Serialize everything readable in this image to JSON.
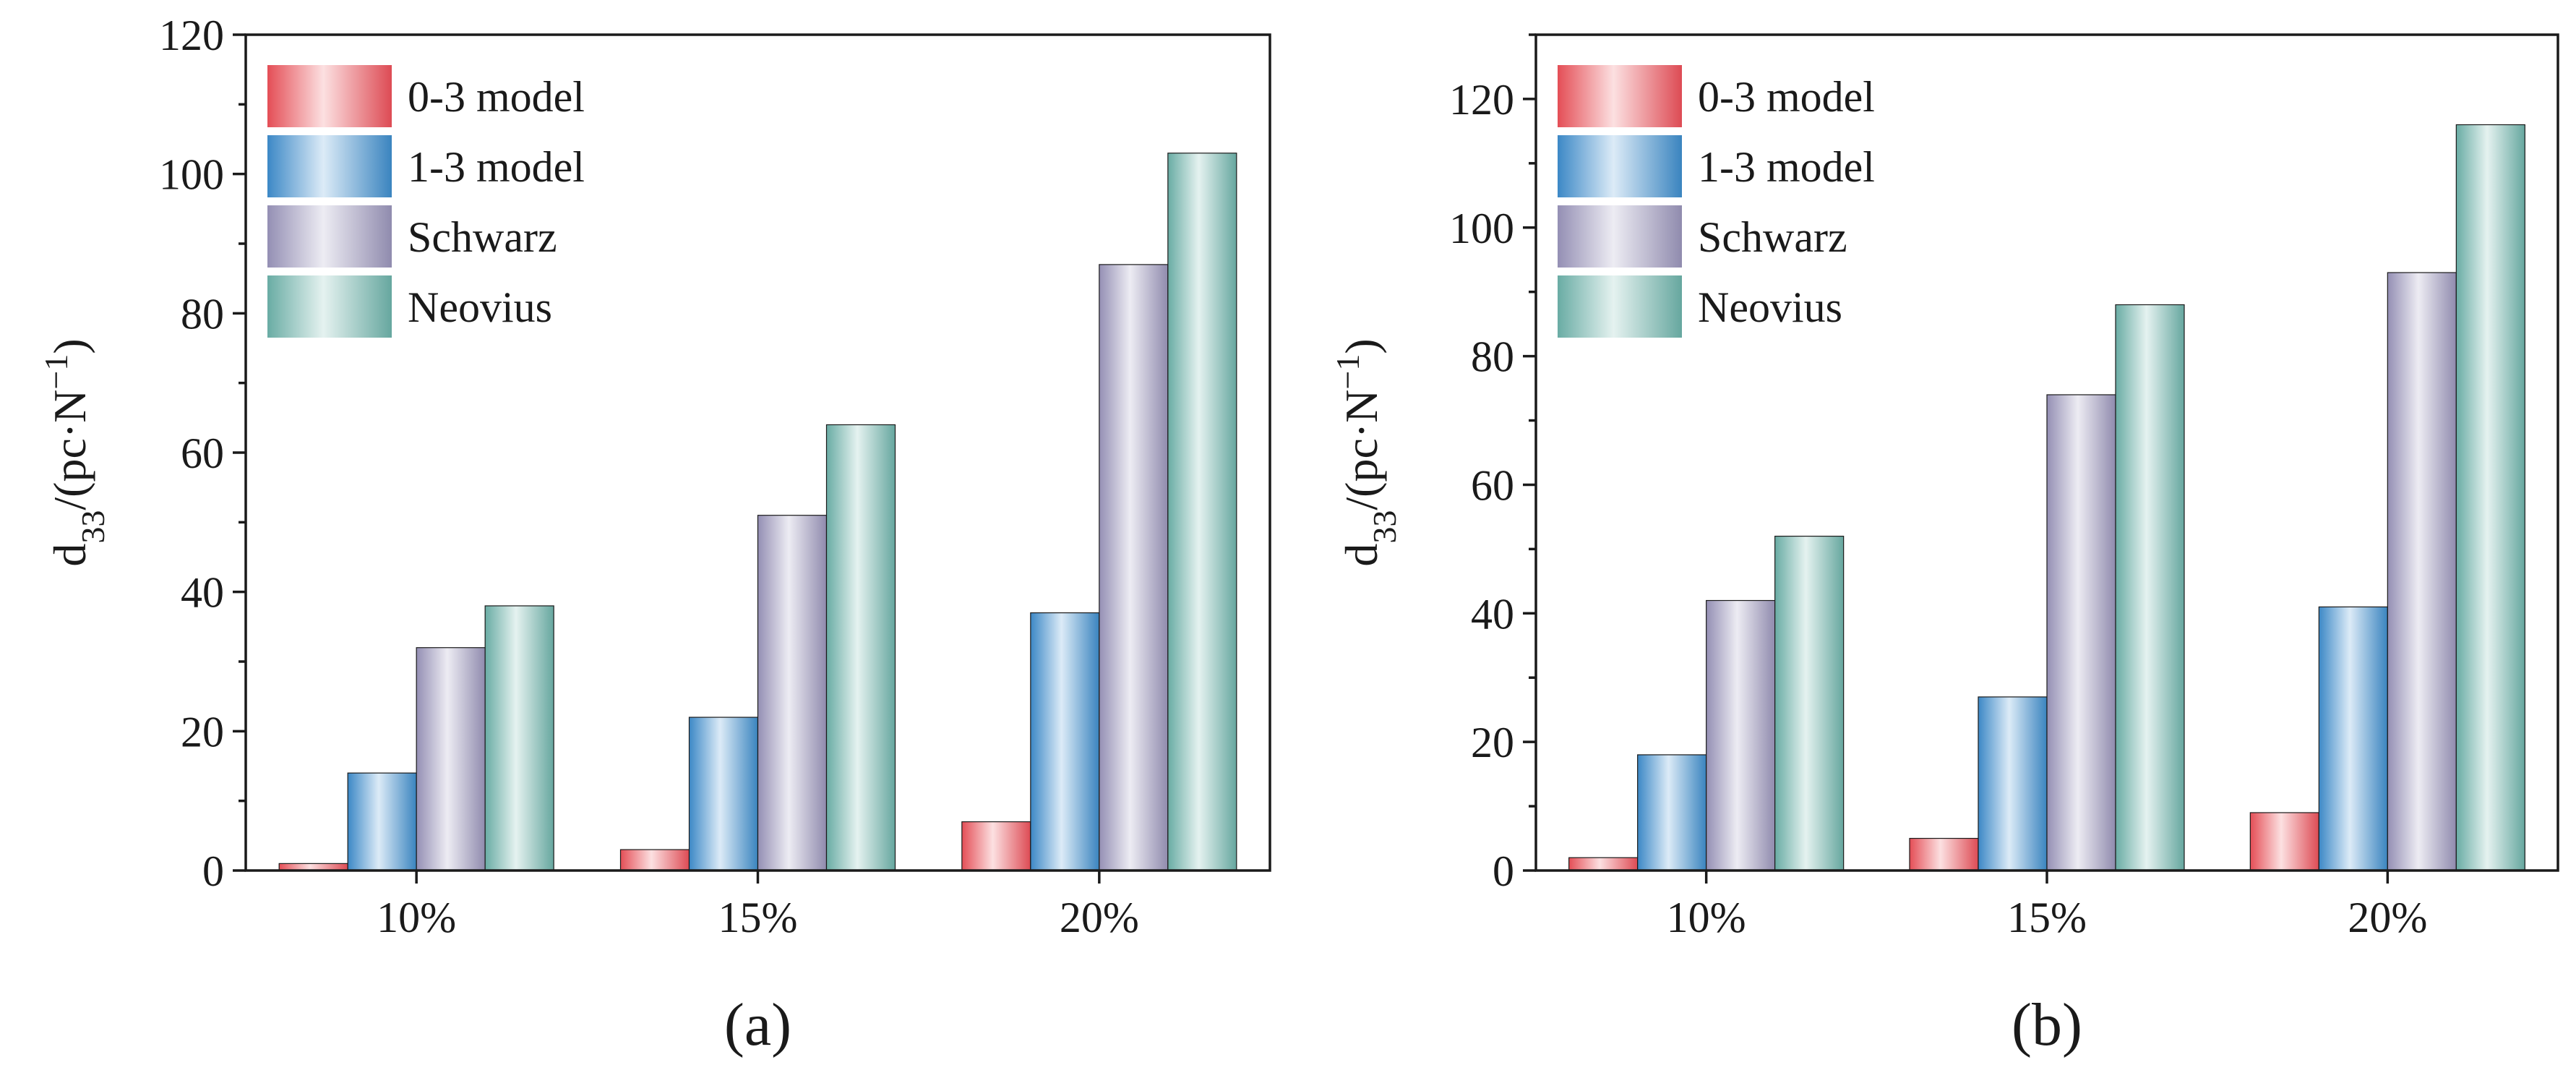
{
  "chart_data": [
    {
      "type": "bar",
      "panel_label": "(a)",
      "categories": [
        "10%",
        "15%",
        "20%"
      ],
      "series": [
        {
          "name": "0-3 model",
          "values": [
            1,
            3,
            7
          ],
          "color": "#f0525b"
        },
        {
          "name": "1-3 model",
          "values": [
            14,
            22,
            37
          ],
          "color": "#3f8fd0"
        },
        {
          "name": "Schwarz",
          "values": [
            32,
            51,
            87
          ],
          "color": "#9c97bd"
        },
        {
          "name": "Neovius",
          "values": [
            38,
            64,
            103
          ],
          "color": "#6fb5ad"
        }
      ],
      "ylabel": {
        "base": "d",
        "sub": "33",
        "unit_open": "/(pc·N",
        "sup": "−1",
        "unit_close": ")"
      },
      "ylim": [
        0,
        120
      ],
      "yticks": [
        0,
        20,
        40,
        60,
        80,
        100,
        120
      ],
      "legend": "top-left"
    },
    {
      "type": "bar",
      "panel_label": "(b)",
      "categories": [
        "10%",
        "15%",
        "20%"
      ],
      "series": [
        {
          "name": "0-3 model",
          "values": [
            2,
            5,
            9
          ],
          "color": "#f0525b"
        },
        {
          "name": "1-3 model",
          "values": [
            18,
            27,
            41
          ],
          "color": "#3f8fd0"
        },
        {
          "name": "Schwarz",
          "values": [
            42,
            74,
            93
          ],
          "color": "#9c97bd"
        },
        {
          "name": "Neovius",
          "values": [
            52,
            88,
            116
          ],
          "color": "#6fb5ad"
        }
      ],
      "ylabel": {
        "base": "d",
        "sub": "33",
        "unit_open": "/(pc·N",
        "sup": "−1",
        "unit_close": ")"
      },
      "ylim": [
        0,
        130
      ],
      "yticks": [
        0,
        20,
        40,
        60,
        80,
        100,
        120
      ],
      "legend": "top-left"
    }
  ]
}
